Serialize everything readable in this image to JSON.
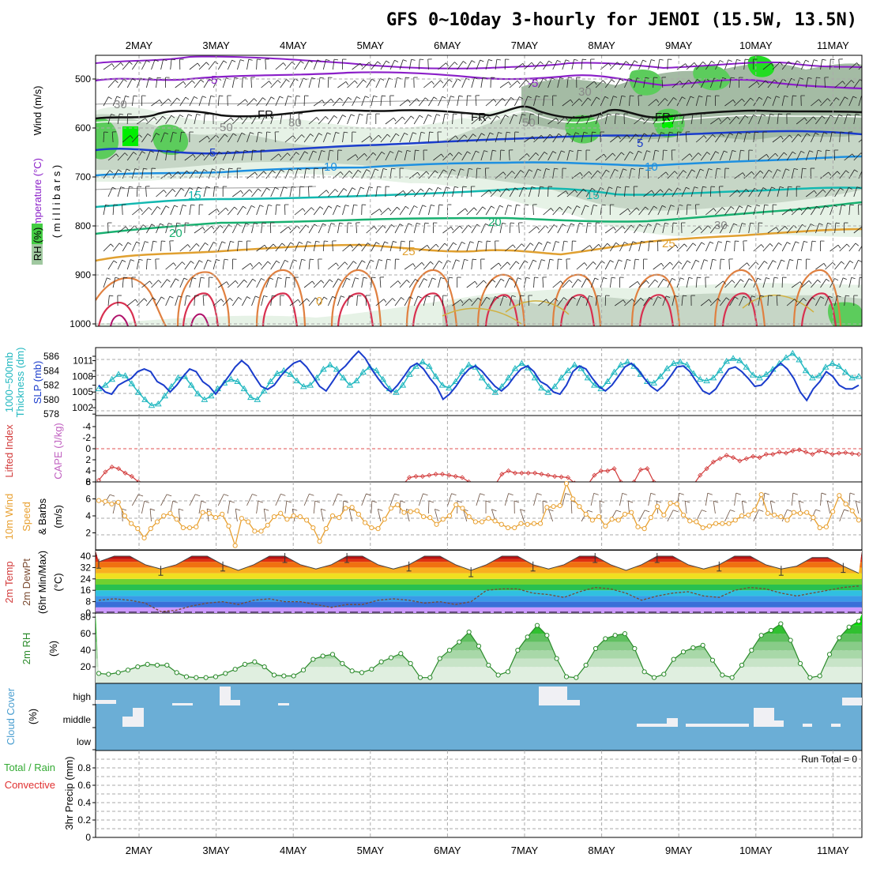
{
  "title": "GFS 0~10day 3-hourly for JENOI (15.5W, 13.5N)",
  "dates": [
    "2MAY",
    "3MAY",
    "4MAY",
    "5MAY",
    "6MAY",
    "7MAY",
    "8MAY",
    "9MAY",
    "10MAY",
    "11MAY"
  ],
  "colors": {
    "rh_green": "#44cc44",
    "slp": "#1a3ccc",
    "thickness": "#22b8c0",
    "lifted": "#d23a3a",
    "wind_speed": "#e8a030",
    "barb": "#333333",
    "cloud": "#6baed6",
    "precip_label": "#33aa33",
    "convective_label": "#e03030",
    "rh2m": "#2a8a2a",
    "dewpt": "#7a4a30"
  },
  "panels": {
    "upper": {
      "label_wind": "Wind (m/s)",
      "label_temp": "Temperature (°C)",
      "label_rh": "RH (%)",
      "label_axis": "( m i l l i b a r s )",
      "y_ticks": [
        "500",
        "600",
        "700",
        "800",
        "900",
        "1000"
      ],
      "contour_labels": [
        "-5",
        "-5",
        "FR",
        "FR",
        "FR",
        "-5",
        "5",
        "5",
        "10",
        "10",
        "15",
        "15",
        "20",
        "20",
        "25",
        "25",
        "0",
        "30",
        "30",
        "50",
        "50",
        "30",
        "30"
      ]
    },
    "slp": {
      "label_thk": "Thickness (dm)",
      "label_thk2": "1000~500mb",
      "label_slp": "SLP (mb)",
      "left_ticks": [
        "586",
        "584",
        "582",
        "580",
        "578"
      ],
      "right_ticks": [
        "1011",
        "1008",
        "1005",
        "1002"
      ]
    },
    "li": {
      "label_li": "Lifted Index",
      "label_cape": "CAPE (J/kg)",
      "left_ticks": [
        "-4",
        "-2",
        "0",
        "2",
        "4",
        "6"
      ],
      "right_ticks": [
        "8"
      ]
    },
    "wind10": {
      "label_a": "10m Wind",
      "label_b": "Speed",
      "label_c": "& Barbs",
      "label_d": "(m/s)",
      "y_ticks": [
        "6",
        "4",
        "2"
      ]
    },
    "temp2m": {
      "label_a": "2m Temp",
      "label_b": "2m DewPt",
      "label_c": "(6hr Min/Max)",
      "label_d": "(°C)",
      "y_ticks": [
        "40",
        "32",
        "24",
        "16",
        "8",
        "0"
      ]
    },
    "rh2m": {
      "label_a": "2m RH",
      "label_b": "(%)",
      "y_ticks": [
        "80",
        "60",
        "40",
        "20"
      ]
    },
    "cloud": {
      "label_a": "Cloud Cover",
      "label_b": "(%)",
      "levels": [
        "high",
        "middle",
        "low"
      ]
    },
    "precip": {
      "label_a": "Total / Rain",
      "label_b": "Convective",
      "label_c": "3hr Precip (mm)",
      "run_total": "Run Total = 0",
      "y_ticks": [
        "0.8",
        "0.6",
        "0.4",
        "0.2",
        "0"
      ]
    }
  },
  "chart_data": {
    "type": "line",
    "x_start": "2026-05-01T12Z",
    "step_hours": 3,
    "series": [
      {
        "name": "SLP (mb)",
        "y_range": [
          1000,
          1013
        ],
        "values": [
          1006.3,
          1005.0,
          1004.6,
          1006.3,
          1007.0,
          1007.6,
          1008.9,
          1009.4,
          1008.9,
          1007.0,
          1006.3,
          1005.0,
          1006.3,
          1008.0,
          1009.4,
          1008.9,
          1007.0,
          1006.1,
          1004.6,
          1006.3,
          1008.0,
          1009.8,
          1011.0,
          1010.0,
          1008.0,
          1006.1,
          1005.5,
          1006.3,
          1008.0,
          1009.4,
          1010.5,
          1011.0,
          1009.8,
          1008.0,
          1006.1,
          1005.2,
          1007.0,
          1008.9,
          1010.0,
          1011.5,
          1012.8,
          1011.5,
          1009.4,
          1007.6,
          1006.0,
          1005.0,
          1006.3,
          1008.0,
          1009.8,
          1010.5,
          1009.4,
          1007.6,
          1006.1,
          1003.6,
          1004.6,
          1006.1,
          1008.0,
          1009.4,
          1010.0,
          1009.0,
          1007.5,
          1006.1,
          1005.2,
          1006.3,
          1008.0,
          1009.4,
          1010.0,
          1008.9,
          1007.0,
          1006.3,
          1005.0,
          1004.6,
          1006.3,
          1008.9,
          1010.0,
          1009.4,
          1007.6,
          1006.1,
          1005.2,
          1006.3,
          1008.0,
          1009.8,
          1010.5,
          1009.4,
          1007.6,
          1006.1,
          1005.2,
          1006.3,
          1008.0,
          1009.8,
          1010.0,
          1008.9,
          1007.0,
          1005.2,
          1004.6,
          1005.6,
          1007.6,
          1009.4,
          1009.8,
          1008.9,
          1007.6,
          1006.1,
          1006.3,
          1007.6,
          1009.4,
          1010.5,
          1009.4,
          1007.6,
          1005.0,
          1003.4,
          1005.6,
          1007.0,
          1008.9,
          1008.0,
          1006.3,
          1005.6,
          1005.6,
          1006.3
        ]
      },
      {
        "name": "Thickness 1000~500mb (dm)",
        "y_range": [
          578,
          587
        ],
        "values": [
          581.5,
          582.0,
          582.8,
          583.5,
          583.3,
          582.2,
          581.0,
          580.0,
          579.2,
          579.4,
          580.5,
          581.8,
          583.0,
          583.2,
          582.0,
          580.8,
          580.0,
          580.5,
          581.5,
          582.3,
          582.8,
          582.5,
          581.5,
          580.3,
          580.0,
          581.2,
          582.5,
          583.6,
          584.0,
          583.5,
          582.6,
          581.8,
          582.0,
          583.0,
          584.2,
          584.8,
          584.2,
          583.0,
          582.0,
          582.6,
          583.8,
          584.5,
          584.0,
          582.8,
          581.5,
          581.0,
          582.0,
          583.5,
          584.6,
          585.2,
          584.6,
          583.2,
          582.0,
          581.6,
          582.5,
          583.9,
          584.8,
          584.5,
          583.0,
          581.8,
          581.0,
          581.8,
          583.0,
          584.3,
          585.0,
          584.4,
          583.0,
          581.6,
          581.0,
          581.8,
          583.0,
          584.0,
          584.8,
          584.3,
          583.0,
          582.0,
          581.5,
          582.5,
          583.8,
          584.8,
          585.2,
          584.6,
          583.5,
          582.5,
          582.3,
          583.2,
          584.3,
          585.0,
          585.2,
          584.8,
          583.6,
          582.8,
          582.6,
          583.0,
          584.0,
          585.3,
          585.7,
          585.4,
          584.5,
          583.4,
          583.0,
          583.5,
          584.2,
          585.0,
          585.8,
          586.4,
          585.5,
          584.0,
          583.0,
          583.3,
          584.5,
          585.0,
          584.6,
          583.8,
          583.0,
          583.2
        ]
      },
      {
        "name": "Lifted Index",
        "y_range": [
          -5,
          6
        ],
        "values": [
          5.7,
          4.2,
          3.3,
          3.6,
          4.4,
          5.0,
          6.0,
          6.5,
          6.5,
          6.5,
          6.5,
          6.5,
          6.5,
          6.5,
          6.5,
          6.5,
          6.5,
          6.5,
          6.5,
          6.5,
          6.5,
          6.5,
          6.5,
          6.5,
          6.5,
          6.5,
          6.5,
          6.5,
          6.5,
          6.5,
          6.5,
          6.5,
          6.5,
          6.5,
          6.5,
          6.5,
          6.5,
          6.5,
          6.5,
          6.5,
          6.5,
          6.5,
          6.5,
          6.5,
          6.5,
          6.5,
          6.5,
          5.2,
          5.0,
          5.0,
          4.8,
          4.6,
          4.6,
          4.8,
          5.0,
          5.2,
          6.0,
          6.5,
          6.5,
          6.5,
          6.5,
          4.6,
          4.0,
          4.4,
          4.4,
          4.4,
          4.4,
          4.6,
          4.8,
          5.0,
          5.1,
          5.2,
          6.2,
          6.5,
          6.5,
          4.8,
          4.0,
          4.0,
          3.6,
          6.0,
          6.5,
          6.0,
          3.8,
          3.6,
          6.0,
          6.5,
          6.5,
          6.5,
          6.5,
          6.5,
          6.5,
          4.8,
          3.6,
          2.4,
          1.8,
          1.2,
          1.6,
          2.2,
          1.8,
          1.4,
          1.6,
          1.0,
          1.0,
          0.6,
          0.8,
          0.4,
          0.2,
          0.6,
          1.0,
          0.4,
          0.6,
          1.0,
          0.8,
          0.7,
          0.9,
          1.0
        ]
      },
      {
        "name": "10m Wind Speed (m/s)",
        "y_range": [
          0,
          8
        ],
        "values": [
          5.8,
          5.7,
          5.4,
          5.6,
          4.0,
          3.1,
          2.5,
          1.4,
          2.5,
          3.3,
          4.0,
          4.3,
          3.6,
          2.6,
          2.6,
          2.7,
          4.4,
          4.3,
          3.8,
          4.2,
          2.8,
          0.5,
          3.7,
          3.3,
          2.2,
          2.2,
          2.9,
          3.9,
          4.3,
          3.6,
          4.0,
          3.9,
          3.5,
          2.6,
          1.0,
          2.5,
          4.0,
          3.8,
          4.9,
          5.0,
          4.2,
          3.2,
          2.6,
          2.5,
          3.6,
          4.9,
          5.3,
          4.4,
          4.5,
          4.6,
          3.9,
          3.8,
          3.0,
          3.6,
          4.0,
          5.3,
          4.9,
          3.9,
          3.3,
          3.3,
          3.7,
          3.4,
          3.0,
          2.6,
          2.6,
          3.1,
          3.0,
          3.1,
          3.1,
          5.0,
          5.1,
          5.2,
          7.8,
          6.0,
          5.1,
          4.2,
          3.5,
          3.9,
          2.8,
          3.6,
          3.5,
          4.2,
          4.4,
          2.7,
          2.5,
          3.8,
          5.1,
          4.1,
          5.5,
          5.4,
          4.1,
          3.4,
          3.3,
          2.6,
          2.8,
          3.1,
          3.1,
          3.1,
          3.5,
          4.0,
          4.1,
          4.7,
          6.5,
          4.3,
          4.1,
          3.9,
          3.5,
          4.4,
          4.3,
          4.4,
          3.8,
          2.6,
          2.7,
          4.5,
          6.4,
          5.4,
          4.6,
          3.5
        ]
      },
      {
        "name": "2m Temp max (°C)",
        "y_range": [
          0,
          42
        ],
        "values": [
          36,
          40,
          40,
          34,
          31,
          34,
          40,
          40,
          34,
          30,
          34,
          40,
          40,
          34,
          31,
          34,
          40,
          40,
          34,
          31,
          34,
          40,
          40,
          34,
          30,
          34,
          40,
          40,
          34,
          31,
          34,
          40,
          40,
          34,
          30,
          34,
          40,
          40,
          34,
          31,
          34,
          40,
          40,
          34,
          31,
          33,
          39,
          39,
          33,
          28
        ]
      },
      {
        "name": "2m DewPt (°C)",
        "y_range": [
          0,
          42
        ],
        "values": [
          9,
          10,
          9,
          7,
          1,
          2,
          5,
          7,
          8,
          6,
          9,
          10,
          8,
          8,
          6,
          4,
          6,
          6,
          9,
          10,
          9,
          7,
          8,
          6,
          8,
          16,
          17,
          17,
          14,
          13,
          11,
          15,
          18,
          17,
          14,
          9,
          12,
          14,
          15,
          12,
          11,
          16,
          18,
          17,
          14,
          12,
          14,
          16,
          18,
          19
        ]
      },
      {
        "name": "2m RH (%)",
        "y_range": [
          0,
          80
        ],
        "values": [
          12,
          11,
          13,
          16,
          20,
          23,
          22,
          22,
          13,
          8,
          7,
          7,
          8,
          12,
          17,
          23,
          26,
          20,
          10,
          9,
          9,
          16,
          29,
          33,
          35,
          24,
          15,
          13,
          17,
          26,
          31,
          36,
          24,
          7,
          7,
          30,
          40,
          50,
          62,
          45,
          22,
          10,
          14,
          40,
          56,
          70,
          58,
          30,
          8,
          7,
          22,
          42,
          54,
          58,
          60,
          42,
          14,
          7,
          11,
          29,
          38,
          43,
          46,
          28,
          10,
          7,
          22,
          40,
          58,
          64,
          72,
          52,
          24,
          7,
          9,
          35,
          55,
          68,
          75
        ]
      },
      {
        "name": "3hr Precip (mm)",
        "y_range": [
          0,
          1
        ],
        "values": [
          0,
          0,
          0,
          0,
          0,
          0,
          0,
          0,
          0,
          0,
          0,
          0,
          0,
          0,
          0,
          0,
          0,
          0,
          0,
          0
        ]
      }
    ]
  }
}
